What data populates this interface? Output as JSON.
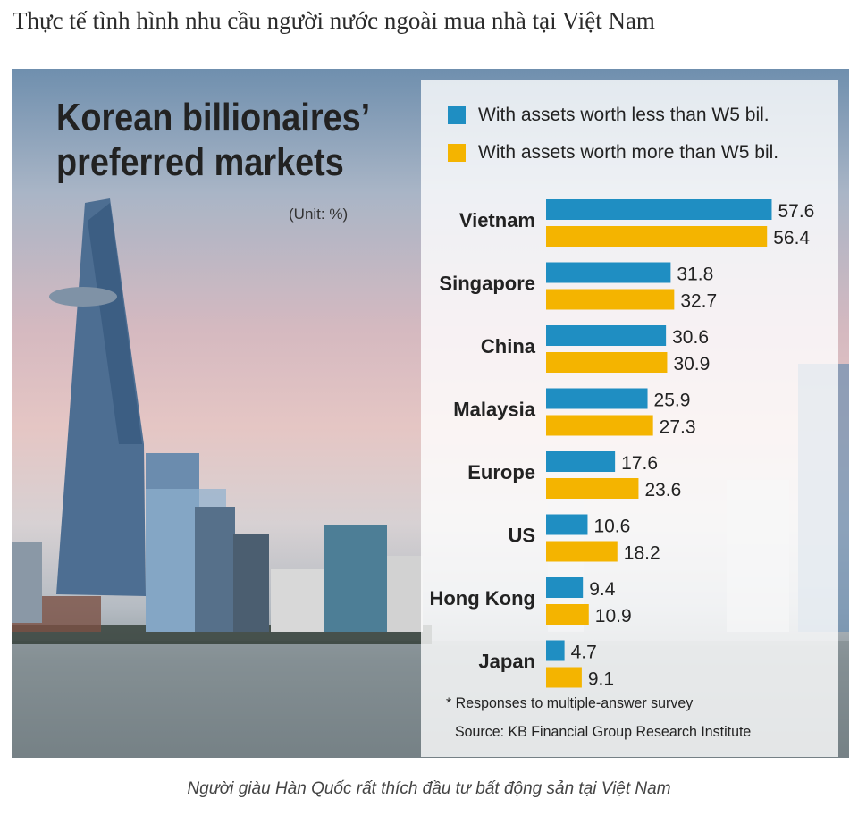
{
  "article": {
    "heading": "Thực tế tình hình nhu cầu người nước ngoài mua nhà tại Việt Nam",
    "caption": "Người giàu Hàn Quốc rất thích đầu tư bất động sản tại Việt Nam"
  },
  "figure": {
    "title_line1": "Korean billionaires’",
    "title_line2": "preferred markets",
    "unit": "(Unit: %)",
    "footnote": "* Responses to multiple-answer survey",
    "source": "Source: KB Financial Group Research Institute"
  },
  "chart_data": {
    "type": "bar",
    "orientation": "horizontal",
    "categories": [
      "Vietnam",
      "Singapore",
      "China",
      "Malaysia",
      "Europe",
      "US",
      "Hong Kong",
      "Japan"
    ],
    "series": [
      {
        "name": "With assets worth less than W5 bil.",
        "color": "#1f8ec2",
        "values": [
          57.6,
          31.8,
          30.6,
          25.9,
          17.6,
          10.6,
          9.4,
          4.7
        ]
      },
      {
        "name": "With assets worth more than W5 bil.",
        "color": "#f4b400",
        "values": [
          56.4,
          32.7,
          30.9,
          27.3,
          23.6,
          18.2,
          10.9,
          9.1
        ]
      }
    ],
    "value_labels": [
      [
        "57.6",
        "31.8",
        "30.6",
        "25.9",
        "17.6",
        "10.6",
        "9.4",
        "4.7"
      ],
      [
        "56.4",
        "32.7",
        "30.9",
        "27.3",
        "23.6",
        "18.2",
        "10.9",
        "9.1"
      ]
    ],
    "xlim": [
      0,
      60
    ],
    "legend_position": "top",
    "grid": false
  }
}
